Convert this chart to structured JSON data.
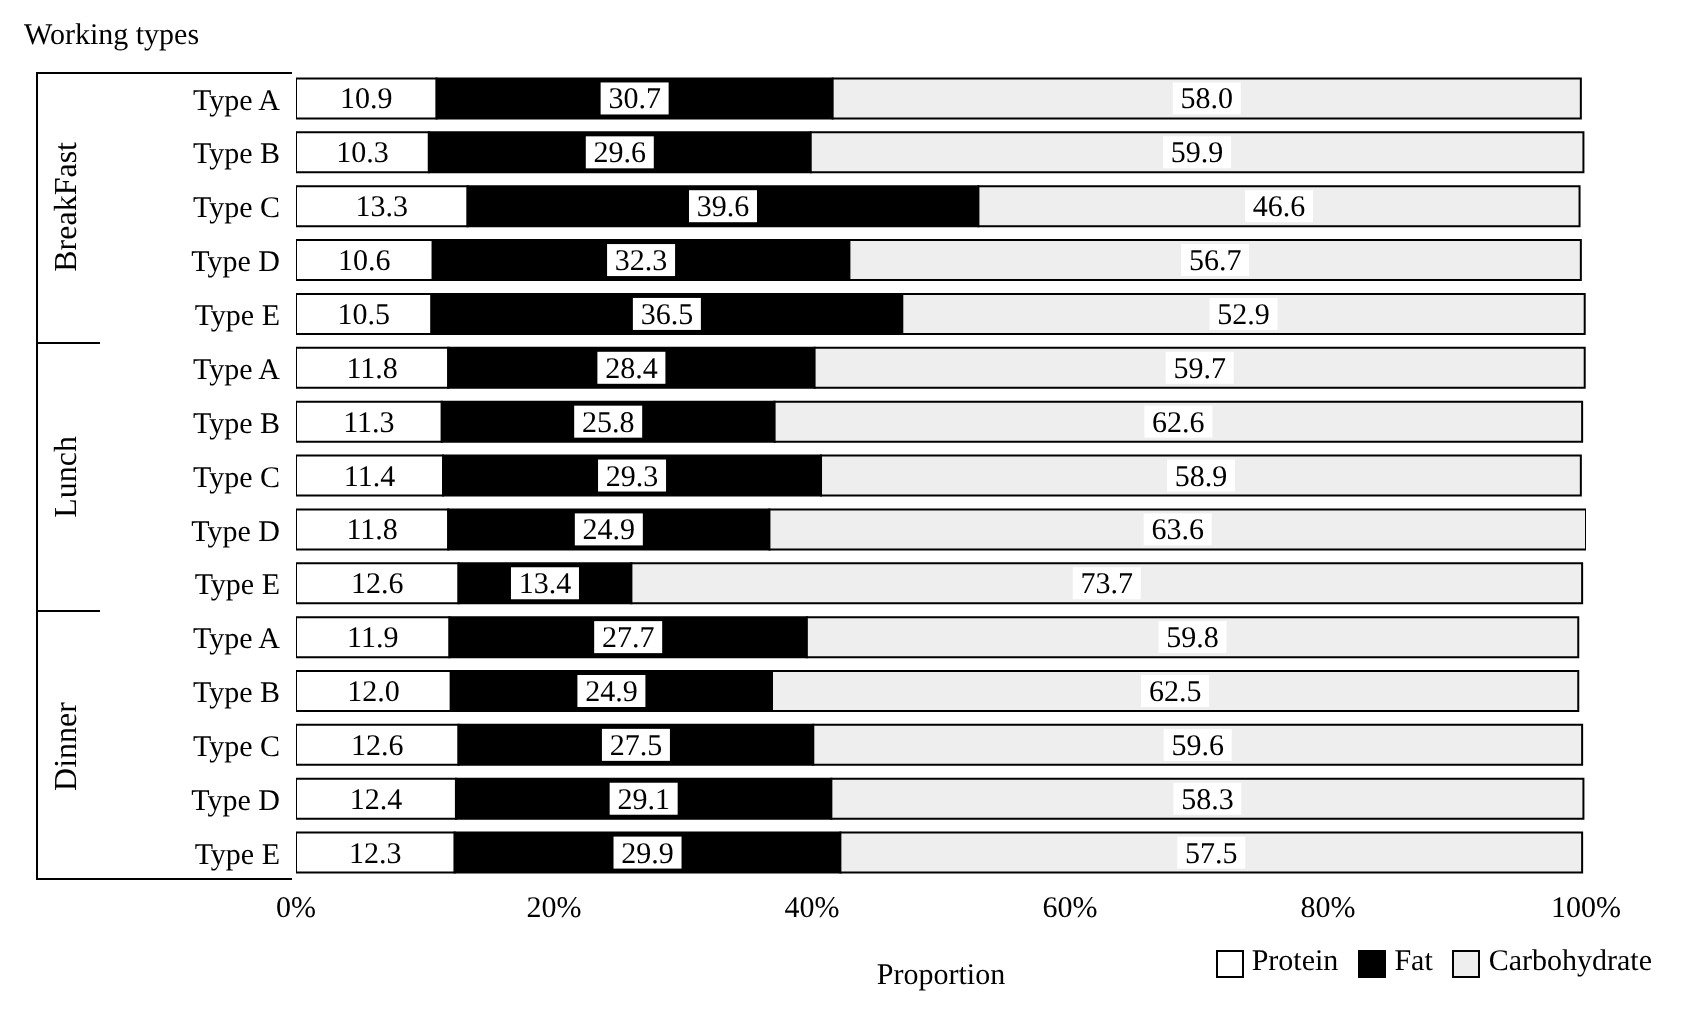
{
  "chart_data": {
    "type": "bar",
    "orientation": "horizontal",
    "stacked": true,
    "ylabel": "Working types",
    "xlabel": "Proportion",
    "annotations": [
      "BreakFast",
      "Lunch",
      "Dinner"
    ],
    "categories": [
      "Type A",
      "Type B",
      "Type C",
      "Type D",
      "Type E",
      "Type A",
      "Type B",
      "Type C",
      "Type D",
      "Type E",
      "Type A",
      "Type B",
      "Type C",
      "Type D",
      "Type E"
    ],
    "series": [
      {
        "name": "Protein",
        "color": "#ffffff",
        "values": [
          10.9,
          10.3,
          13.3,
          10.6,
          10.5,
          11.8,
          11.3,
          11.4,
          11.8,
          12.6,
          11.9,
          12.0,
          12.6,
          12.4,
          12.3
        ],
        "value_labels": [
          "10.9",
          "10.3",
          "13.3",
          "10.6",
          "10.5",
          "11.8",
          "11.3",
          "11.4",
          "11.8",
          "12.6",
          "11.9",
          "12.0",
          "12.6",
          "12.4",
          "12.3"
        ]
      },
      {
        "name": "Fat",
        "color": "#000000",
        "values": [
          30.7,
          29.6,
          39.6,
          32.3,
          36.5,
          28.4,
          25.8,
          29.3,
          24.9,
          13.4,
          27.7,
          24.9,
          27.5,
          29.1,
          29.9
        ],
        "value_labels": [
          "30.7",
          "29.6",
          "39.6",
          "32.3",
          "36.5",
          "28.4",
          "25.8",
          "29.3",
          "24.9",
          "13.4",
          "27.7",
          "24.9",
          "27.5",
          "29.1",
          "29.9"
        ]
      },
      {
        "name": "Carbohydrate",
        "color": "#eeeeee",
        "values": [
          58.0,
          59.9,
          46.6,
          56.7,
          52.9,
          59.7,
          62.6,
          58.9,
          63.6,
          73.7,
          59.8,
          62.5,
          59.6,
          58.3,
          57.5
        ],
        "value_labels": [
          "58.0",
          "59.9",
          "46.6",
          "56.7",
          "52.9",
          "59.7",
          "62.6",
          "58.9",
          "63.6",
          "73.7",
          "59.8",
          "62.5",
          "59.6",
          "58.3",
          "57.5"
        ]
      }
    ],
    "xlim": [
      0,
      100
    ],
    "xticks": [
      {
        "value": 0,
        "label": "0%"
      },
      {
        "value": 20,
        "label": "20%"
      },
      {
        "value": 40,
        "label": "40%"
      },
      {
        "value": 60,
        "label": "60%"
      },
      {
        "value": 80,
        "label": "80%"
      },
      {
        "value": 100,
        "label": "100%"
      }
    ],
    "grid": false,
    "legend": "bottom right"
  }
}
